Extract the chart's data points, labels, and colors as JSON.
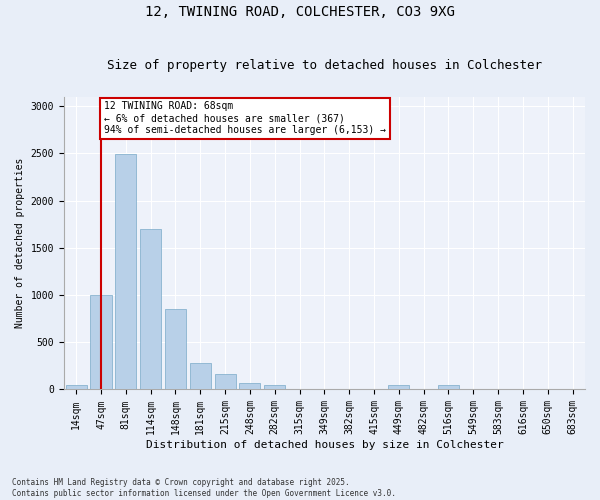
{
  "title1": "12, TWINING ROAD, COLCHESTER, CO3 9XG",
  "title2": "Size of property relative to detached houses in Colchester",
  "xlabel": "Distribution of detached houses by size in Colchester",
  "ylabel": "Number of detached properties",
  "footnote1": "Contains HM Land Registry data © Crown copyright and database right 2025.",
  "footnote2": "Contains public sector information licensed under the Open Government Licence v3.0.",
  "bins": [
    "14sqm",
    "47sqm",
    "81sqm",
    "114sqm",
    "148sqm",
    "181sqm",
    "215sqm",
    "248sqm",
    "282sqm",
    "315sqm",
    "349sqm",
    "382sqm",
    "415sqm",
    "449sqm",
    "482sqm",
    "516sqm",
    "549sqm",
    "583sqm",
    "616sqm",
    "650sqm",
    "683sqm"
  ],
  "values": [
    50,
    1000,
    2490,
    1700,
    850,
    280,
    160,
    65,
    50,
    5,
    5,
    5,
    5,
    50,
    5,
    50,
    5,
    5,
    5,
    5,
    5
  ],
  "bar_color": "#b8d0e8",
  "bar_edge_color": "#7aaac8",
  "red_line_x": 1.0,
  "annotation_text": "12 TWINING ROAD: 68sqm\n← 6% of detached houses are smaller (367)\n94% of semi-detached houses are larger (6,153) →",
  "annotation_box_color": "#ffffff",
  "annotation_edge_color": "#cc0000",
  "ylim": [
    0,
    3100
  ],
  "yticks": [
    0,
    500,
    1000,
    1500,
    2000,
    2500,
    3000
  ],
  "bg_color": "#e8eef8",
  "plot_bg_color": "#eef2fa",
  "grid_color": "#ffffff",
  "title_fontsize": 10,
  "subtitle_fontsize": 9,
  "tick_fontsize": 7,
  "ylabel_fontsize": 7,
  "xlabel_fontsize": 8
}
